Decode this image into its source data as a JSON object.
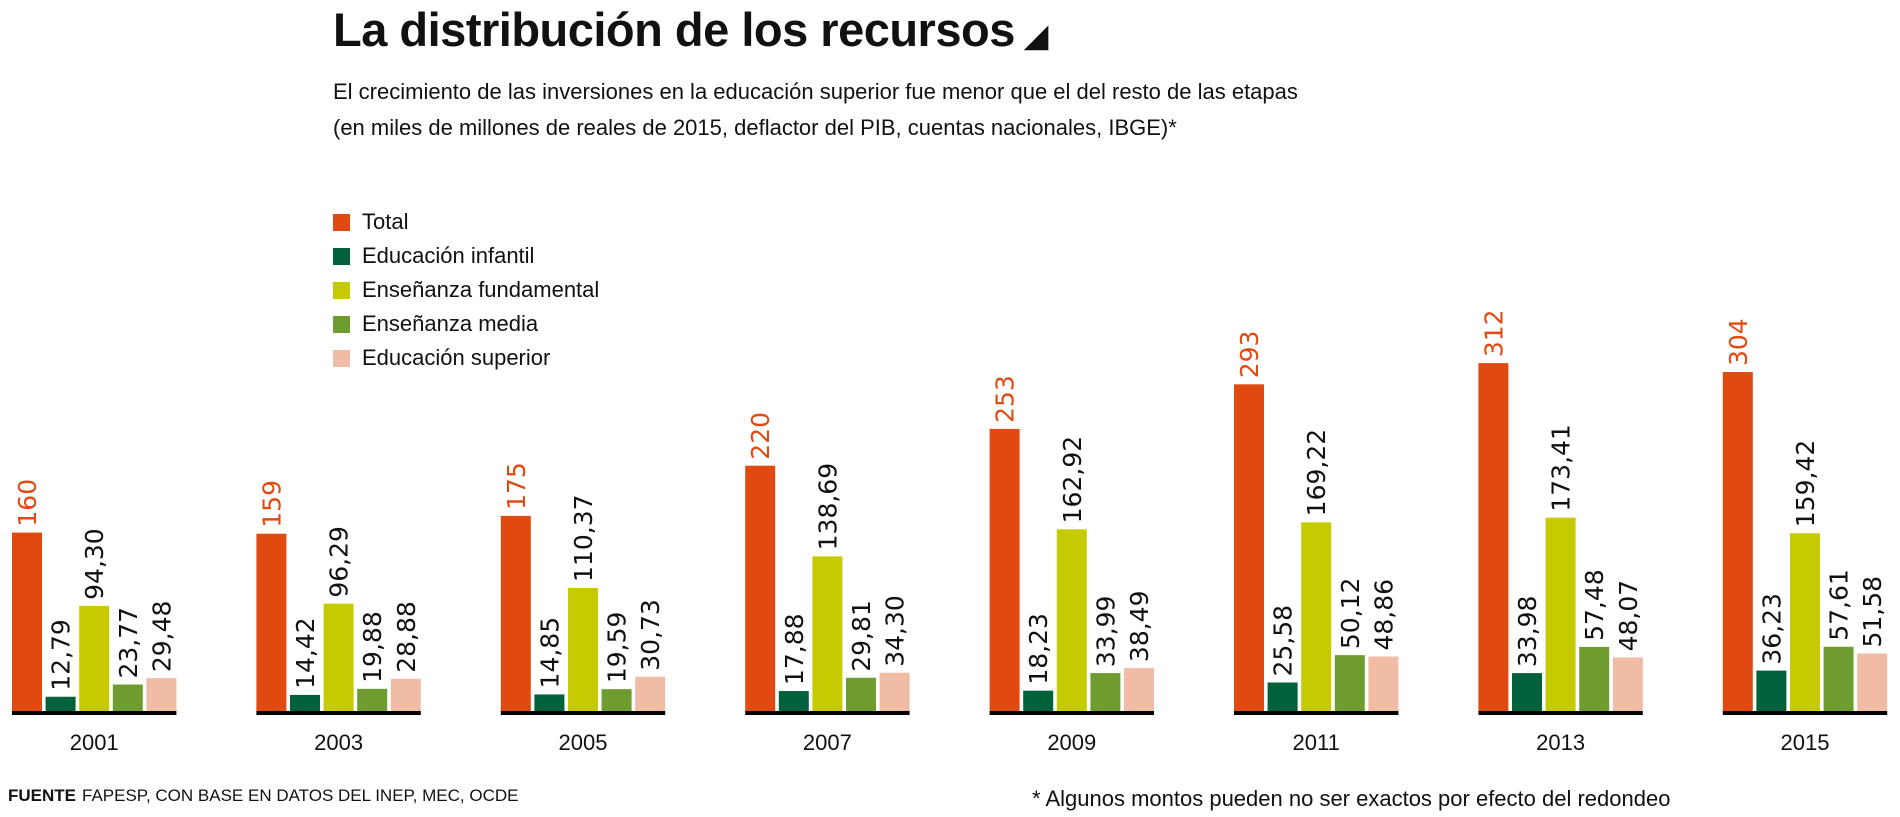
{
  "chart_data": {
    "type": "bar",
    "title": "La distribución de los recursos",
    "subtitle_lines": [
      "El crecimiento de las inversiones en la educación superior fue menor que el del resto de las etapas",
      "(en miles de millones de reales de 2015, deflactor del PIB, cuentas nacionales, IBGE)*"
    ],
    "categories": [
      "2001",
      "2003",
      "2005",
      "2007",
      "2009",
      "2011",
      "2013",
      "2015"
    ],
    "series": [
      {
        "name": "Total",
        "color": "#e04a10",
        "label_color": "#e04a10",
        "values": [
          160,
          159,
          175,
          220,
          253,
          293,
          312,
          304
        ],
        "labels": [
          "160",
          "159",
          "175",
          "220",
          "253",
          "293",
          "312",
          "304"
        ]
      },
      {
        "name": "Educación infantil",
        "color": "#00613a",
        "label_color": "#111111",
        "values": [
          12.79,
          14.42,
          14.85,
          17.88,
          18.23,
          25.58,
          33.98,
          36.23
        ],
        "labels": [
          "12,79",
          "14,42",
          "14,85",
          "17,88",
          "18,23",
          "25,58",
          "33,98",
          "36,23"
        ]
      },
      {
        "name": "Enseñanza fundamental",
        "color": "#c5cb00",
        "label_color": "#111111",
        "values": [
          94.3,
          96.29,
          110.37,
          138.69,
          162.92,
          169.22,
          173.41,
          159.42
        ],
        "labels": [
          "94,30",
          "96,29",
          "110,37",
          "138,69",
          "162,92",
          "169,22",
          "173,41",
          "159,42"
        ]
      },
      {
        "name": "Enseñanza media",
        "color": "#6f9c2e",
        "label_color": "#111111",
        "values": [
          23.77,
          19.88,
          19.59,
          29.81,
          33.99,
          50.12,
          57.48,
          57.61
        ],
        "labels": [
          "23,77",
          "19,88",
          "19,59",
          "29,81",
          "33,99",
          "50,12",
          "57,48",
          "57,61"
        ]
      },
      {
        "name": "Educación superior",
        "color": "#f0bca6",
        "label_color": "#111111",
        "values": [
          29.48,
          28.88,
          30.73,
          34.3,
          38.49,
          48.86,
          48.07,
          51.58
        ],
        "labels": [
          "29,48",
          "28,88",
          "30,73",
          "34,30",
          "38,49",
          "48,86",
          "48,07",
          "51,58"
        ]
      }
    ],
    "ylim": [
      0,
      320
    ],
    "grid": false,
    "legend_position": "top-left",
    "title_icon": "triangle-corner-icon"
  },
  "footer": {
    "source_label": "FUENTE",
    "source_text": "FAPESP, CON BASE EN DATOS DEL INEP, MEC, OCDE",
    "note": "* Algunos montos pueden no ser exactos por efecto del redondeo"
  }
}
